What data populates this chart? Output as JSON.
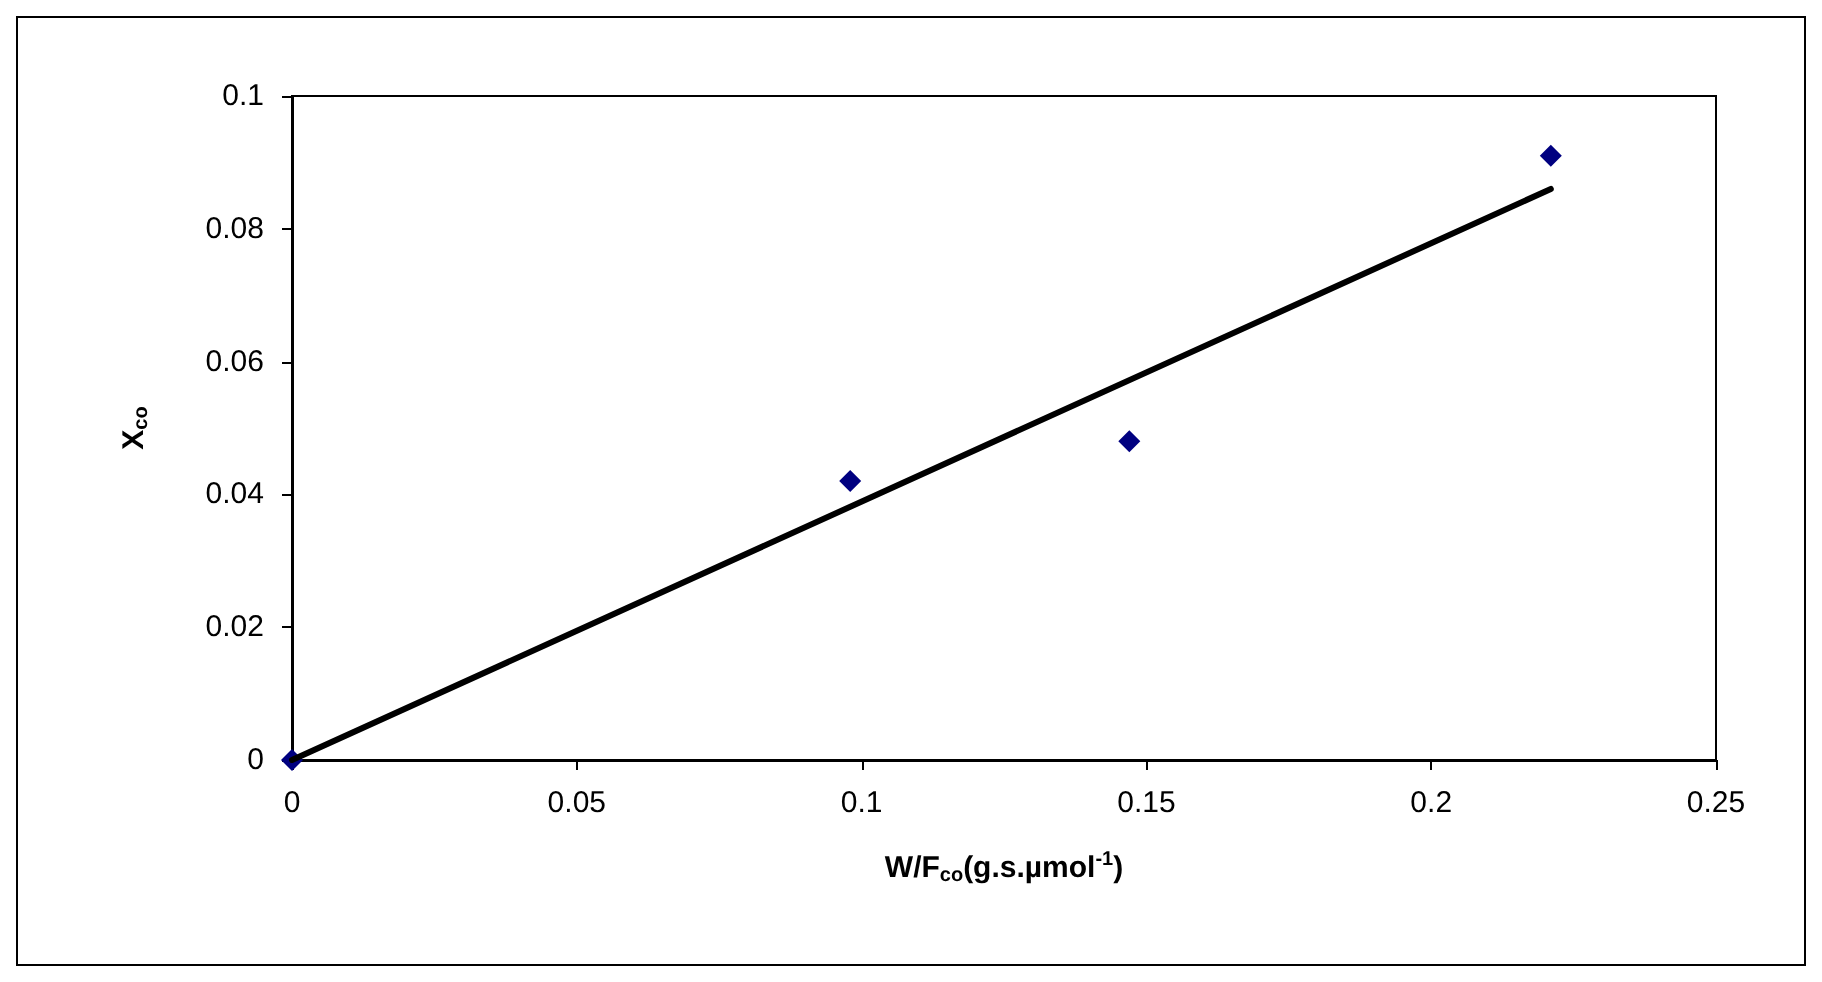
{
  "chart_data": {
    "type": "scatter",
    "xlabel": "W/F$_{co}$(g.s.µmol$^{-1}$)",
    "ylabel": "X$_{co}$",
    "series": [
      {
        "color": "#000080",
        "marker": "diamond",
        "x": [
          0,
          0.098,
          0.147,
          0.221
        ],
        "values": [
          0,
          0.042,
          0.048,
          0.091
        ]
      },
      {
        "type": "line",
        "color": "#000000",
        "line_style": "solid",
        "marker": "none",
        "x": [
          0,
          0.221
        ],
        "values": [
          0,
          0.086
        ]
      }
    ],
    "xlim": [
      0,
      0.25
    ],
    "xticks": [
      0,
      0.05,
      0.1,
      0.15,
      0.2,
      0.25
    ],
    "ylim": [
      0,
      0.1
    ],
    "yticks": [
      0,
      0.02,
      0.04,
      0.06,
      0.08,
      0.1
    ],
    "grid": false
  }
}
